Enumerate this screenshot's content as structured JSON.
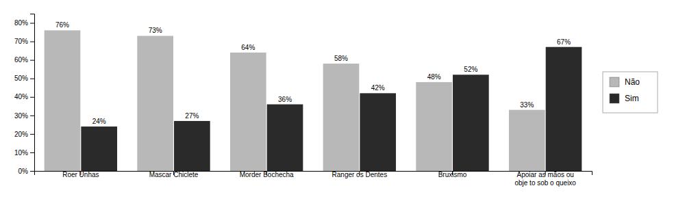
{
  "chart_data": {
    "type": "bar",
    "categories": [
      "Roer Unhas",
      "Mascar Chiclete",
      "Morder Bochecha",
      "Ranger os Dentes",
      "Bruxismo",
      "Apoiar as mãos ou\nobje to sob o queixo"
    ],
    "series": [
      {
        "name": "Não",
        "color": "#b8b8b8",
        "values": [
          76,
          73,
          64,
          58,
          48,
          33
        ],
        "value_labels": [
          "76%",
          "73%",
          "64%",
          "58%",
          "48%",
          "33%"
        ]
      },
      {
        "name": "Sim",
        "color": "#2a2a2a",
        "values": [
          24,
          27,
          36,
          42,
          52,
          67
        ],
        "value_labels": [
          "24%",
          "27%",
          "36%",
          "42%",
          "52%",
          "67%"
        ]
      }
    ],
    "ylim": [
      0,
      85
    ],
    "yticks": [
      {
        "value": 0,
        "label": "0%"
      },
      {
        "value": 10,
        "label": "10%"
      },
      {
        "value": 20,
        "label": "20%"
      },
      {
        "value": 30,
        "label": "30%"
      },
      {
        "value": 40,
        "label": "40%"
      },
      {
        "value": 50,
        "label": "50%"
      },
      {
        "value": 60,
        "label": "60%"
      },
      {
        "value": 70,
        "label": "70%"
      },
      {
        "value": 80,
        "label": "80%"
      }
    ],
    "grid": false,
    "legend": "right",
    "data_labels": true
  }
}
